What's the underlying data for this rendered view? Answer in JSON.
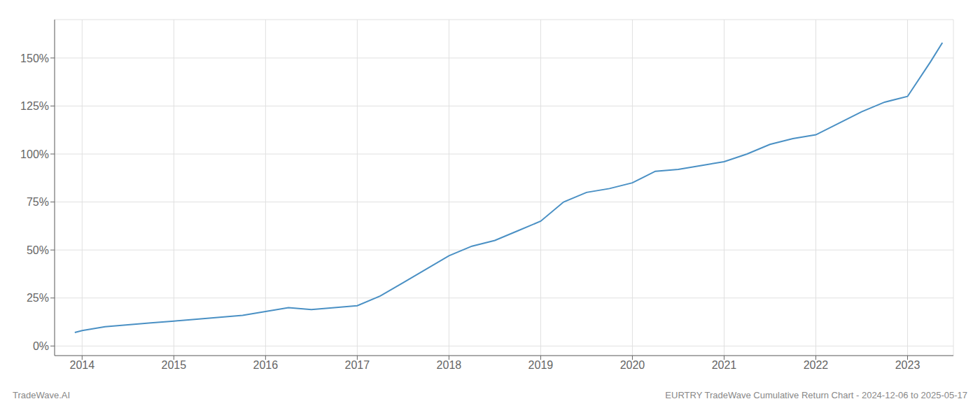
{
  "chart_data": {
    "type": "line",
    "title": "EURTRY TradeWave Cumulative Return Chart - 2024-12-06 to 2025-05-17",
    "annotations": [
      "TradeWave.AI"
    ],
    "color": "#4a90c4",
    "grid": true,
    "x": [
      2013.92,
      2014.0,
      2014.25,
      2014.5,
      2014.75,
      2015.0,
      2015.25,
      2015.5,
      2015.75,
      2016.0,
      2016.25,
      2016.5,
      2016.75,
      2017.0,
      2017.25,
      2017.5,
      2017.75,
      2018.0,
      2018.25,
      2018.5,
      2018.75,
      2019.0,
      2019.25,
      2019.5,
      2019.75,
      2020.0,
      2020.25,
      2020.5,
      2020.75,
      2021.0,
      2021.25,
      2021.5,
      2021.75,
      2022.0,
      2022.25,
      2022.5,
      2022.75,
      2023.0,
      2023.25,
      2023.38
    ],
    "values": [
      7,
      8,
      10,
      11,
      12,
      13,
      14,
      15,
      16,
      18,
      20,
      19,
      20,
      21,
      26,
      33,
      40,
      47,
      52,
      55,
      60,
      65,
      75,
      80,
      82,
      85,
      91,
      92,
      94,
      96,
      100,
      105,
      108,
      110,
      116,
      122,
      127,
      130,
      148,
      158
    ],
    "xlim": [
      2013.7,
      2023.5
    ],
    "xticks": [
      2014,
      2015,
      2016,
      2017,
      2018,
      2019,
      2020,
      2021,
      2022,
      2023
    ],
    "ylim": [
      -5,
      170
    ],
    "yticks": [
      {
        "value": 0,
        "label": "0%"
      },
      {
        "value": 25,
        "label": "25%"
      },
      {
        "value": 50,
        "label": "50%"
      },
      {
        "value": 75,
        "label": "75%"
      },
      {
        "value": 100,
        "label": "100%"
      },
      {
        "value": 125,
        "label": "125%"
      },
      {
        "value": 150,
        "label": "150%"
      }
    ]
  }
}
